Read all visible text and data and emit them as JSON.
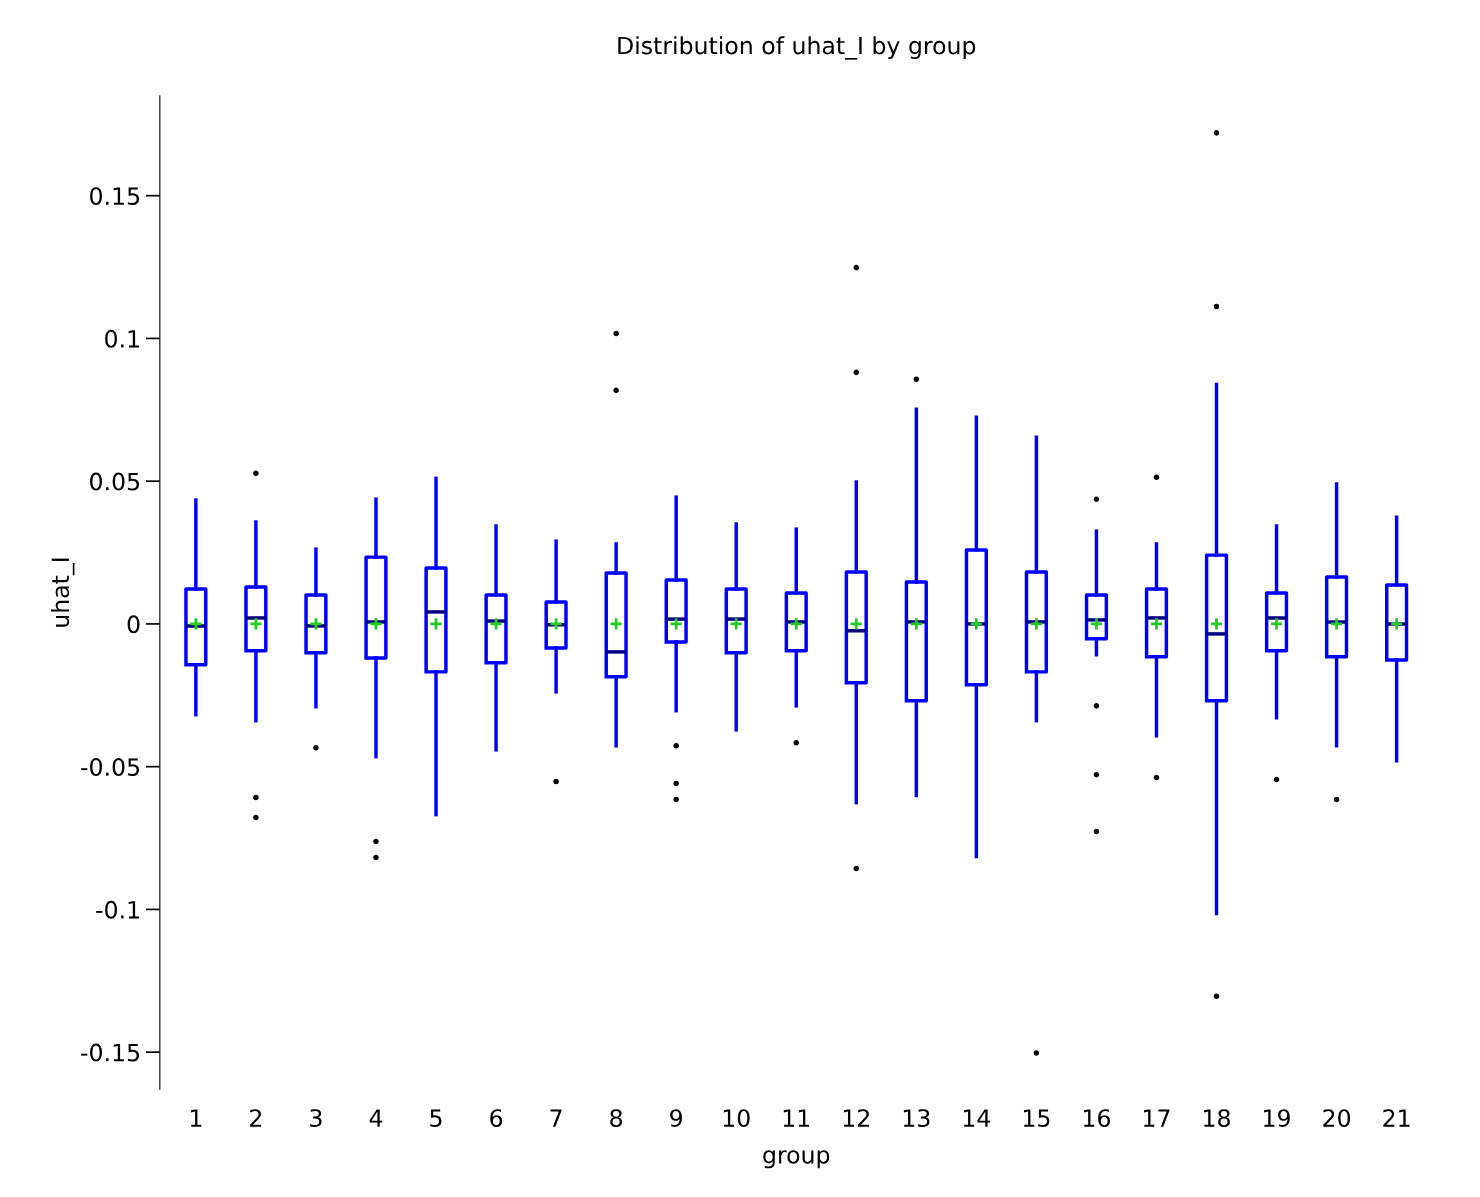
{
  "chart_data": {
    "type": "box",
    "title": "Distribution of uhat_I by group",
    "xlabel": "group",
    "ylabel": "uhat_I",
    "categories": [
      "1",
      "2",
      "3",
      "4",
      "5",
      "6",
      "7",
      "8",
      "9",
      "10",
      "11",
      "12",
      "13",
      "14",
      "15",
      "16",
      "17",
      "18",
      "19",
      "20",
      "21"
    ],
    "ylim": [
      -0.163,
      0.185
    ],
    "yticks": [
      -0.15,
      -0.1,
      -0.05,
      0,
      0.05,
      0.1,
      0.15
    ],
    "grid": false,
    "legend": false,
    "series": [
      {
        "color": "#0000ff",
        "boxes": [
          {
            "low": -0.0318,
            "q1": -0.0143,
            "median": -0.0007,
            "q3": 0.0122,
            "high": 0.0434,
            "mean": 0
          },
          {
            "low": -0.0339,
            "q1": -0.0094,
            "median": 0.0021,
            "q3": 0.0129,
            "high": 0.0357,
            "mean": 0,
            "outliers": [
              0.0528,
              -0.0608,
              -0.0678
            ]
          },
          {
            "low": -0.029,
            "q1": -0.0101,
            "median": -0.0007,
            "q3": 0.0101,
            "high": 0.0262,
            "mean": 0,
            "outliers": [
              -0.0434
            ]
          },
          {
            "low": -0.0465,
            "q1": -0.0119,
            "median": 0.0007,
            "q3": 0.0234,
            "high": 0.0437,
            "mean": 0,
            "outliers": [
              -0.0762,
              -0.0818
            ]
          },
          {
            "low": -0.0668,
            "q1": -0.0168,
            "median": 0.0042,
            "q3": 0.0196,
            "high": 0.051,
            "mean": 0
          },
          {
            "low": -0.0441,
            "q1": -0.0136,
            "median": 0.001,
            "q3": 0.0101,
            "high": 0.0343,
            "mean": 0
          },
          {
            "low": -0.0238,
            "q1": -0.0084,
            "median": -0.0003,
            "q3": 0.0077,
            "high": 0.029,
            "mean": 0,
            "outliers": [
              -0.0552
            ]
          },
          {
            "low": -0.0427,
            "q1": -0.0185,
            "median": -0.0098,
            "q3": 0.0178,
            "high": 0.028,
            "mean": 0,
            "outliers": [
              0.1017,
              0.0818
            ]
          },
          {
            "low": -0.0304,
            "q1": -0.0063,
            "median": 0.0017,
            "q3": 0.0154,
            "high": 0.0444,
            "mean": 0,
            "outliers": [
              -0.0427,
              -0.0559,
              -0.0615
            ]
          },
          {
            "low": -0.0371,
            "q1": -0.0101,
            "median": 0.0017,
            "q3": 0.0122,
            "high": 0.035,
            "mean": 0
          },
          {
            "low": -0.0287,
            "q1": -0.0094,
            "median": 0.0007,
            "q3": 0.0108,
            "high": 0.0332,
            "mean": 0,
            "outliers": [
              -0.0416
            ]
          },
          {
            "low": -0.0626,
            "q1": -0.0206,
            "median": -0.0024,
            "q3": 0.0182,
            "high": 0.0497,
            "mean": 0,
            "outliers": [
              0.1248,
              0.0881,
              -0.0857
            ]
          },
          {
            "low": -0.0601,
            "q1": -0.0269,
            "median": 0.0007,
            "q3": 0.0147,
            "high": 0.0752,
            "mean": 0,
            "outliers": [
              0.0857
            ]
          },
          {
            "low": -0.0815,
            "q1": -0.0213,
            "median": 0,
            "q3": 0.0259,
            "high": 0.0724,
            "mean": 0
          },
          {
            "low": -0.0339,
            "q1": -0.0168,
            "median": 0.0007,
            "q3": 0.0182,
            "high": 0.0654,
            "mean": 0,
            "outliers": [
              -0.1503
            ]
          },
          {
            "low": -0.0108,
            "q1": -0.0052,
            "median": 0.0014,
            "q3": 0.0101,
            "high": 0.0325,
            "mean": 0,
            "outliers": [
              0.0437,
              -0.0287,
              -0.0528,
              -0.0727
            ]
          },
          {
            "low": -0.0392,
            "q1": -0.0115,
            "median": 0.0021,
            "q3": 0.0122,
            "high": 0.028,
            "mean": 0,
            "outliers": [
              0.0514,
              -0.0538
            ]
          },
          {
            "low": -0.1014,
            "q1": -0.0269,
            "median": -0.0035,
            "q3": 0.0241,
            "high": 0.0839,
            "mean": 0,
            "outliers": [
              0.172,
              0.1112,
              -0.1304
            ]
          },
          {
            "low": -0.0329,
            "q1": -0.0094,
            "median": 0.0021,
            "q3": 0.0108,
            "high": 0.0343,
            "mean": 0,
            "outliers": [
              -0.0545
            ]
          },
          {
            "low": -0.0427,
            "q1": -0.0115,
            "median": 0.0007,
            "q3": 0.0164,
            "high": 0.049,
            "mean": 0,
            "outliers": [
              -0.0615
            ]
          },
          {
            "low": -0.0479,
            "q1": -0.0126,
            "median": 0,
            "q3": 0.0136,
            "high": 0.0374,
            "mean": 0
          }
        ]
      }
    ]
  }
}
